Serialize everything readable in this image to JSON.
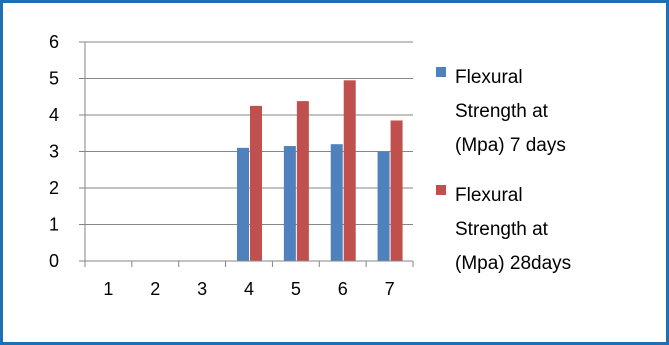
{
  "chart_data": {
    "type": "bar",
    "categories": [
      "1",
      "2",
      "3",
      "4",
      "5",
      "6",
      "7"
    ],
    "series": [
      {
        "name": "Flexural Strength at (Mpa) 7 days",
        "legend_lines": [
          "Flexural",
          "Strength at",
          "(Mpa) 7 days"
        ],
        "color": "#4f81bd",
        "values": [
          null,
          null,
          null,
          3.1,
          3.15,
          3.2,
          3.0
        ]
      },
      {
        "name": "Flexural Strength at (Mpa) 28days",
        "legend_lines": [
          "Flexural",
          "Strength at",
          "(Mpa) 28days"
        ],
        "color": "#c0504d",
        "values": [
          null,
          null,
          null,
          4.25,
          4.38,
          4.95,
          3.85
        ]
      }
    ],
    "y_ticks": [
      "0",
      "1",
      "2",
      "3",
      "4",
      "5",
      "6"
    ],
    "ylim": [
      0,
      6
    ],
    "grid": true,
    "legend_position": "right",
    "title": "",
    "xlabel": "",
    "ylabel": ""
  },
  "colors": {
    "frame_border": "#1f6fb2",
    "gridline": "#868686",
    "axis": "#868686"
  }
}
